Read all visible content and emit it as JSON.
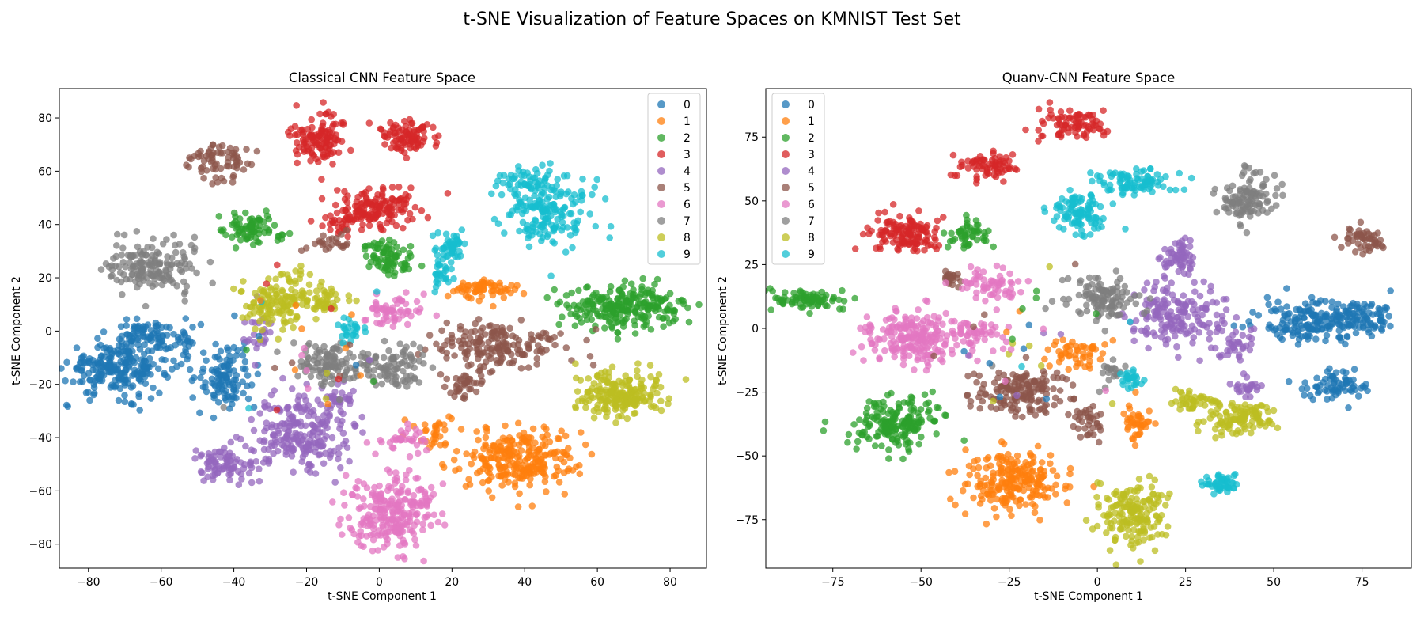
{
  "figure": {
    "title": "t-SNE Visualization of Feature Spaces on KMNIST Test Set"
  },
  "class_colors": {
    "0": "#1f77b4",
    "1": "#ff7f0e",
    "2": "#2ca02c",
    "3": "#d62728",
    "4": "#9467bd",
    "5": "#8c564b",
    "6": "#e377c2",
    "7": "#7f7f7f",
    "8": "#bcbd22",
    "9": "#17becf"
  },
  "chart_data": [
    {
      "type": "scatter",
      "title": "Classical CNN Feature Space",
      "xlabel": "t-SNE Component 1",
      "ylabel": "t-SNE Component 2",
      "xlim": [
        -88,
        90
      ],
      "ylim": [
        -89,
        91
      ],
      "xticks": [
        -80,
        -60,
        -40,
        -20,
        0,
        20,
        40,
        60,
        80
      ],
      "yticks": [
        -80,
        -60,
        -40,
        -20,
        0,
        20,
        40,
        60,
        80
      ],
      "legend": {
        "position": "top-right",
        "labels": [
          "0",
          "1",
          "2",
          "3",
          "4",
          "5",
          "6",
          "7",
          "8",
          "9"
        ]
      },
      "grid": false,
      "clusters": [
        {
          "label": "0",
          "center": [
            -72,
            -14
          ],
          "spread": [
            7,
            5
          ],
          "count": 230
        },
        {
          "label": "0",
          "center": [
            -64,
            -2
          ],
          "spread": [
            4,
            3
          ],
          "count": 70
        },
        {
          "label": "0",
          "center": [
            -42,
            -17
          ],
          "spread": [
            4,
            6
          ],
          "count": 110
        },
        {
          "label": "0",
          "center": [
            -53,
            -4
          ],
          "spread": [
            2,
            4
          ],
          "count": 25
        },
        {
          "label": "1",
          "center": [
            38,
            -48
          ],
          "spread": [
            8,
            6
          ],
          "count": 260
        },
        {
          "label": "1",
          "center": [
            30,
            16
          ],
          "spread": [
            5,
            2
          ],
          "count": 60
        },
        {
          "label": "1",
          "center": [
            16,
            -38
          ],
          "spread": [
            3,
            3
          ],
          "count": 30
        },
        {
          "label": "2",
          "center": [
            68,
            9
          ],
          "spread": [
            8,
            4
          ],
          "count": 240
        },
        {
          "label": "2",
          "center": [
            -35,
            38
          ],
          "spread": [
            4,
            3
          ],
          "count": 80
        },
        {
          "label": "2",
          "center": [
            2,
            29
          ],
          "spread": [
            4,
            3
          ],
          "count": 55
        },
        {
          "label": "2",
          "center": [
            4,
            25
          ],
          "spread": [
            3,
            2
          ],
          "count": 25
        },
        {
          "label": "3",
          "center": [
            -17,
            73
          ],
          "spread": [
            4,
            5
          ],
          "count": 120
        },
        {
          "label": "3",
          "center": [
            8,
            73
          ],
          "spread": [
            4,
            3
          ],
          "count": 90
        },
        {
          "label": "3",
          "center": [
            0,
            46
          ],
          "spread": [
            6,
            4
          ],
          "count": 140
        },
        {
          "label": "3",
          "center": [
            -10,
            40
          ],
          "spread": [
            3,
            2
          ],
          "count": 30
        },
        {
          "label": "4",
          "center": [
            -22,
            -38
          ],
          "spread": [
            7,
            7
          ],
          "count": 220
        },
        {
          "label": "4",
          "center": [
            -43,
            -50
          ],
          "spread": [
            4,
            3
          ],
          "count": 80
        },
        {
          "label": "4",
          "center": [
            -33,
            0
          ],
          "spread": [
            2,
            4
          ],
          "count": 25
        },
        {
          "label": "4",
          "center": [
            -11,
            -26
          ],
          "spread": [
            3,
            3
          ],
          "count": 30
        },
        {
          "label": "5",
          "center": [
            32,
            -5
          ],
          "spread": [
            9,
            4
          ],
          "count": 170
        },
        {
          "label": "5",
          "center": [
            -44,
            63
          ],
          "spread": [
            4,
            4
          ],
          "count": 70
        },
        {
          "label": "5",
          "center": [
            24,
            -20
          ],
          "spread": [
            3,
            3
          ],
          "count": 40
        },
        {
          "label": "5",
          "center": [
            -13,
            33
          ],
          "spread": [
            3,
            2
          ],
          "count": 25
        },
        {
          "label": "6",
          "center": [
            3,
            -68
          ],
          "spread": [
            6,
            7
          ],
          "count": 250
        },
        {
          "label": "6",
          "center": [
            4,
            7
          ],
          "spread": [
            4,
            3
          ],
          "count": 60
        },
        {
          "label": "6",
          "center": [
            7,
            -40
          ],
          "spread": [
            4,
            3
          ],
          "count": 35
        },
        {
          "label": "7",
          "center": [
            -62,
            24
          ],
          "spread": [
            6,
            5
          ],
          "count": 160
        },
        {
          "label": "7",
          "center": [
            -13,
            -12
          ],
          "spread": [
            5,
            4
          ],
          "count": 100
        },
        {
          "label": "7",
          "center": [
            3,
            -13
          ],
          "spread": [
            4,
            4
          ],
          "count": 90
        },
        {
          "label": "8",
          "center": [
            -28,
            11
          ],
          "spread": [
            6,
            5
          ],
          "count": 140
        },
        {
          "label": "8",
          "center": [
            -15,
            11
          ],
          "spread": [
            3,
            3
          ],
          "count": 40
        },
        {
          "label": "8",
          "center": [
            66,
            -24
          ],
          "spread": [
            6,
            4
          ],
          "count": 200
        },
        {
          "label": "9",
          "center": [
            47,
            44
          ],
          "spread": [
            6,
            6
          ],
          "count": 160
        },
        {
          "label": "9",
          "center": [
            41,
            56
          ],
          "spread": [
            5,
            3
          ],
          "count": 60
        },
        {
          "label": "9",
          "center": [
            20,
            31
          ],
          "spread": [
            2,
            3
          ],
          "count": 50
        },
        {
          "label": "9",
          "center": [
            17,
            21
          ],
          "spread": [
            2,
            2
          ],
          "count": 25
        },
        {
          "label": "9",
          "center": [
            -8,
            0
          ],
          "spread": [
            2,
            2
          ],
          "count": 25
        }
      ]
    },
    {
      "type": "scatter",
      "title": "Quanv-CNN Feature Space",
      "xlabel": "t-SNE Component 1",
      "ylabel": "t-SNE Component 2",
      "xlim": [
        -94,
        89
      ],
      "ylim": [
        -94,
        94
      ],
      "xticks": [
        -75,
        -50,
        -25,
        0,
        25,
        50,
        75
      ],
      "yticks": [
        -75,
        -50,
        -25,
        0,
        25,
        50,
        75
      ],
      "legend": {
        "position": "top-left",
        "labels": [
          "0",
          "1",
          "2",
          "3",
          "4",
          "5",
          "6",
          "7",
          "8",
          "9"
        ]
      },
      "grid": false,
      "clusters": [
        {
          "label": "0",
          "center": [
            62,
            3
          ],
          "spread": [
            8,
            4
          ],
          "count": 180
        },
        {
          "label": "0",
          "center": [
            67,
            -22
          ],
          "spread": [
            5,
            3
          ],
          "count": 70
        },
        {
          "label": "0",
          "center": [
            75,
            5
          ],
          "spread": [
            4,
            4
          ],
          "count": 60
        },
        {
          "label": "1",
          "center": [
            -23,
            -60
          ],
          "spread": [
            7,
            6
          ],
          "count": 220
        },
        {
          "label": "1",
          "center": [
            -6,
            -10
          ],
          "spread": [
            4,
            3
          ],
          "count": 50
        },
        {
          "label": "1",
          "center": [
            11,
            -38
          ],
          "spread": [
            2,
            4
          ],
          "count": 40
        },
        {
          "label": "2",
          "center": [
            -57,
            -37
          ],
          "spread": [
            6,
            5
          ],
          "count": 180
        },
        {
          "label": "2",
          "center": [
            -82,
            11
          ],
          "spread": [
            5,
            2
          ],
          "count": 80
        },
        {
          "label": "2",
          "center": [
            -37,
            37
          ],
          "spread": [
            3,
            3
          ],
          "count": 50
        },
        {
          "label": "3",
          "center": [
            -7,
            80
          ],
          "spread": [
            5,
            3
          ],
          "count": 80
        },
        {
          "label": "3",
          "center": [
            -31,
            63
          ],
          "spread": [
            4,
            3
          ],
          "count": 70
        },
        {
          "label": "3",
          "center": [
            -55,
            37
          ],
          "spread": [
            5,
            4
          ],
          "count": 130
        },
        {
          "label": "4",
          "center": [
            23,
            5
          ],
          "spread": [
            7,
            6
          ],
          "count": 170
        },
        {
          "label": "4",
          "center": [
            23,
            28
          ],
          "spread": [
            3,
            3
          ],
          "count": 60
        },
        {
          "label": "4",
          "center": [
            38,
            -8
          ],
          "spread": [
            3,
            3
          ],
          "count": 35
        },
        {
          "label": "4",
          "center": [
            42,
            -23
          ],
          "spread": [
            3,
            2
          ],
          "count": 25
        },
        {
          "label": "5",
          "center": [
            -22,
            -25
          ],
          "spread": [
            7,
            4
          ],
          "count": 160
        },
        {
          "label": "5",
          "center": [
            -2,
            -36
          ],
          "spread": [
            2,
            3
          ],
          "count": 35
        },
        {
          "label": "5",
          "center": [
            75,
            35
          ],
          "spread": [
            3,
            3
          ],
          "count": 50
        },
        {
          "label": "5",
          "center": [
            -42,
            20
          ],
          "spread": [
            2,
            2
          ],
          "count": 20
        },
        {
          "label": "6",
          "center": [
            -52,
            -3
          ],
          "spread": [
            7,
            5
          ],
          "count": 220
        },
        {
          "label": "6",
          "center": [
            -30,
            17
          ],
          "spread": [
            4,
            4
          ],
          "count": 60
        },
        {
          "label": "6",
          "center": [
            -34,
            -2
          ],
          "spread": [
            4,
            3
          ],
          "count": 40
        },
        {
          "label": "7",
          "center": [
            42,
            52
          ],
          "spread": [
            4,
            5
          ],
          "count": 110
        },
        {
          "label": "7",
          "center": [
            1,
            12
          ],
          "spread": [
            5,
            4
          ],
          "count": 110
        },
        {
          "label": "7",
          "center": [
            5,
            -18
          ],
          "spread": [
            2,
            2
          ],
          "count": 20
        },
        {
          "label": "8",
          "center": [
            10,
            -72
          ],
          "spread": [
            5,
            6
          ],
          "count": 170
        },
        {
          "label": "8",
          "center": [
            40,
            -35
          ],
          "spread": [
            5,
            4
          ],
          "count": 110
        },
        {
          "label": "8",
          "center": [
            27,
            -28
          ],
          "spread": [
            3,
            2
          ],
          "count": 40
        },
        {
          "label": "9",
          "center": [
            10,
            57
          ],
          "spread": [
            5,
            3
          ],
          "count": 90
        },
        {
          "label": "9",
          "center": [
            -5,
            45
          ],
          "spread": [
            4,
            4
          ],
          "count": 100
        },
        {
          "label": "9",
          "center": [
            35,
            -61
          ],
          "spread": [
            3,
            2
          ],
          "count": 50
        },
        {
          "label": "9",
          "center": [
            10,
            -20
          ],
          "spread": [
            2,
            2
          ],
          "count": 25
        }
      ]
    }
  ]
}
